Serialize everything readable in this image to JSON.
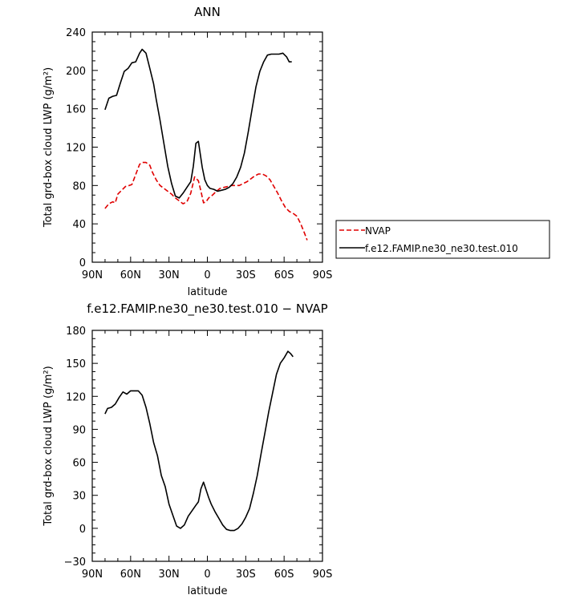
{
  "chart_data": [
    {
      "type": "line",
      "title": "ANN",
      "xlabel": "latitude",
      "ylabel": "Total grd-box cloud LWP (g/m²)",
      "xlim": [
        -90,
        90
      ],
      "ylim": [
        0,
        240
      ],
      "xticks": [
        -90,
        -60,
        -30,
        0,
        30,
        60,
        90
      ],
      "xtick_labels": [
        "90N",
        "60N",
        "30N",
        "0",
        "30S",
        "60S",
        "90S"
      ],
      "yticks": [
        0,
        40,
        80,
        120,
        160,
        200,
        240
      ],
      "ytick_labels": [
        "0",
        "40",
        "80",
        "120",
        "160",
        "200",
        "240"
      ],
      "grid": false,
      "legend": "right",
      "series": [
        {
          "name": "NVAP",
          "color": "#e00000",
          "dash": "dashed",
          "x": [
            -80,
            -77,
            -74,
            -72,
            -70,
            -67,
            -64,
            -61,
            -59,
            -57,
            -55,
            -53,
            -51,
            -48,
            -45,
            -43,
            -40,
            -37,
            -35,
            -31,
            -28,
            -25,
            -22,
            -19,
            -16,
            -13,
            -10,
            -7,
            -5,
            -3,
            -1,
            1,
            4,
            7,
            10,
            13,
            16,
            19,
            22,
            25,
            28,
            31,
            34,
            37,
            40,
            43,
            46,
            49,
            52,
            55,
            58,
            61,
            64,
            67,
            70,
            73,
            76,
            78
          ],
          "y": [
            56,
            61,
            63,
            62,
            71,
            75,
            79,
            80,
            81,
            88,
            95,
            102,
            104,
            104,
            101,
            94,
            86,
            80,
            78,
            74,
            71,
            67,
            64,
            61,
            63,
            72,
            89,
            85,
            74,
            62,
            63,
            67,
            70,
            74,
            77,
            78,
            79,
            80,
            80,
            80,
            82,
            84,
            87,
            90,
            92,
            92,
            90,
            86,
            79,
            72,
            64,
            57,
            53,
            51,
            48,
            40,
            30,
            23
          ]
        },
        {
          "name": "f.e12.FAMIP.ne30_ne30.test.010",
          "color": "#000000",
          "dash": "solid",
          "x": [
            -80,
            -77,
            -74,
            -71,
            -68,
            -65,
            -62,
            -59,
            -56,
            -53,
            -51,
            -48,
            -45,
            -42,
            -40,
            -37,
            -34,
            -31,
            -28,
            -25,
            -22,
            -19,
            -16,
            -13,
            -11,
            -9,
            -7,
            -4,
            -2,
            0,
            2,
            5,
            8,
            11,
            14,
            17,
            20,
            23,
            26,
            29,
            32,
            35,
            38,
            41,
            44,
            47,
            50,
            53,
            56,
            59,
            62,
            64,
            66
          ],
          "y": [
            159,
            171,
            173,
            174,
            187,
            199,
            202,
            208,
            209,
            218,
            222,
            218,
            202,
            186,
            170,
            148,
            124,
            100,
            82,
            69,
            67,
            72,
            78,
            84,
            100,
            124,
            126,
            99,
            86,
            80,
            77,
            76,
            74,
            75,
            76,
            78,
            82,
            89,
            99,
            114,
            136,
            160,
            183,
            199,
            209,
            216,
            217,
            217,
            217,
            218,
            214,
            209,
            209
          ]
        }
      ]
    },
    {
      "type": "line",
      "title": "f.e12.FAMIP.ne30_ne30.test.010 − NVAP",
      "xlabel": "latitude",
      "ylabel": "Total grd-box cloud LWP (g/m²)",
      "xlim": [
        -90,
        90
      ],
      "ylim": [
        -30,
        180
      ],
      "xticks": [
        -90,
        -60,
        -30,
        0,
        30,
        60,
        90
      ],
      "xtick_labels": [
        "90N",
        "60N",
        "30N",
        "0",
        "30S",
        "60S",
        "90S"
      ],
      "yticks": [
        -30,
        0,
        30,
        60,
        90,
        120,
        150,
        180
      ],
      "ytick_labels": [
        "−30",
        "0",
        "30",
        "60",
        "90",
        "120",
        "150",
        "180"
      ],
      "grid": false,
      "series": [
        {
          "color": "#000000",
          "dash": "solid",
          "x": [
            -80,
            -78,
            -75,
            -72,
            -69,
            -66,
            -63,
            -60,
            -57,
            -54,
            -51,
            -48,
            -45,
            -42,
            -39,
            -36,
            -33,
            -30,
            -27,
            -24,
            -21,
            -18,
            -15,
            -12,
            -9,
            -7,
            -5,
            -3,
            -1,
            1,
            3,
            6,
            9,
            12,
            15,
            18,
            21,
            24,
            27,
            30,
            33,
            36,
            39,
            42,
            45,
            48,
            51,
            54,
            57,
            60,
            63,
            65,
            67
          ],
          "y": [
            104,
            109,
            110,
            113,
            119,
            124,
            122,
            125,
            125,
            125,
            121,
            110,
            95,
            78,
            66,
            48,
            38,
            22,
            12,
            2,
            0,
            3,
            11,
            16,
            21,
            24,
            36,
            42,
            35,
            28,
            22,
            15,
            9,
            3,
            -1,
            -2,
            -2,
            0,
            4,
            10,
            18,
            32,
            48,
            68,
            87,
            106,
            123,
            140,
            150,
            155,
            161,
            159,
            156
          ]
        }
      ]
    }
  ]
}
